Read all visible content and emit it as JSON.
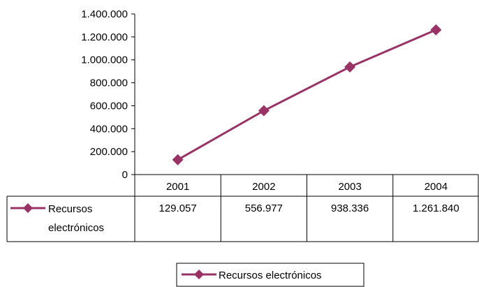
{
  "chart_data": {
    "type": "line",
    "categories": [
      "2001",
      "2002",
      "2003",
      "2004"
    ],
    "series": [
      {
        "name": "Recursos electrónicos",
        "name_lines": [
          "Recursos",
          "electrónicos"
        ],
        "values": [
          129057,
          556977,
          938336,
          1261840
        ],
        "value_labels": [
          "129.057",
          "556.977",
          "938.336",
          "1.261.840"
        ],
        "color": "#993366",
        "marker": "diamond"
      }
    ],
    "ylim": [
      0,
      1400000
    ],
    "y_ticks": [
      0,
      200000,
      400000,
      600000,
      800000,
      1000000,
      1200000,
      1400000
    ],
    "y_tick_labels": [
      "0",
      "200.000",
      "400.000",
      "600.000",
      "800.000",
      "1.000.000",
      "1.200.000",
      "1.400.000"
    ],
    "grid": false,
    "data_table": true,
    "legend": {
      "position": "bottom",
      "entries": [
        "Recursos electrónicos"
      ]
    }
  }
}
